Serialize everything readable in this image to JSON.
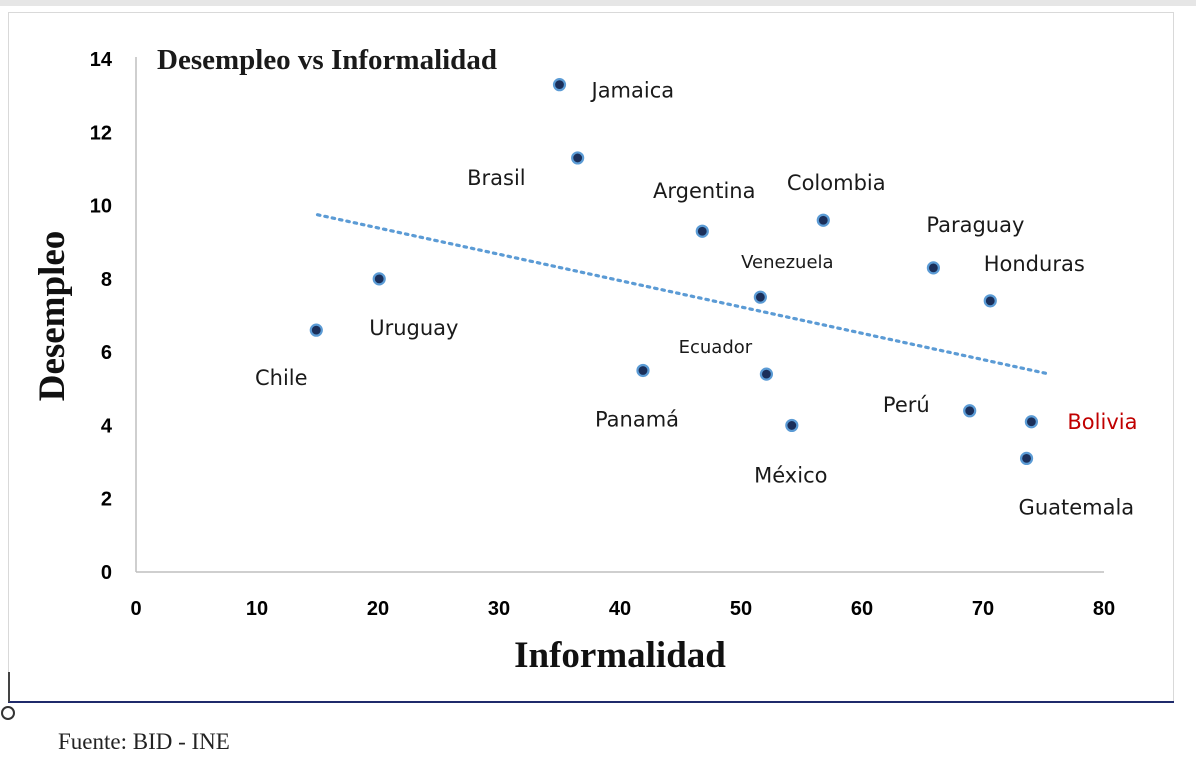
{
  "chart_data": {
    "type": "scatter",
    "title": "Desempleo vs Informalidad",
    "xlabel": "Informalidad",
    "ylabel": "Desempleo",
    "xlim": [
      0,
      80
    ],
    "ylim": [
      0,
      14
    ],
    "x_ticks": [
      "0",
      "10",
      "20",
      "30",
      "40",
      "50",
      "60",
      "70",
      "80"
    ],
    "y_ticks": [
      "0",
      "2",
      "4",
      "6",
      "8",
      "10",
      "12",
      "14"
    ],
    "grid": false,
    "point_color": "#1b2f5a",
    "point_edge_color": "#5b9bd5",
    "highlight_color": "#c00000",
    "trendline": {
      "style": "dotted",
      "color": "#5b9bd5",
      "start": {
        "x": 15,
        "y": 9.75
      },
      "end": {
        "x": 75.5,
        "y": 5.4
      }
    },
    "points": [
      {
        "label": "Jamaica",
        "x": 35,
        "y": 13.3
      },
      {
        "label": "Brasil",
        "x": 36.5,
        "y": 11.3
      },
      {
        "label": "Argentina",
        "x": 46.8,
        "y": 9.3
      },
      {
        "label": "Colombia",
        "x": 56.8,
        "y": 9.6
      },
      {
        "label": "Paraguay",
        "x": 65.9,
        "y": 8.3
      },
      {
        "label": "Honduras",
        "x": 70.6,
        "y": 7.4
      },
      {
        "label": "Venezuela",
        "x": 51.6,
        "y": 7.5
      },
      {
        "label": "Uruguay",
        "x": 20.1,
        "y": 8.0
      },
      {
        "label": "Chile",
        "x": 14.9,
        "y": 6.6
      },
      {
        "label": "Ecuador",
        "x": 52.1,
        "y": 5.4
      },
      {
        "label": "Panamá",
        "x": 41.9,
        "y": 5.5
      },
      {
        "label": "México",
        "x": 54.2,
        "y": 4.0
      },
      {
        "label": "Perú",
        "x": 68.9,
        "y": 4.4
      },
      {
        "label": "Bolivia",
        "x": 74.0,
        "y": 4.1,
        "highlight": true
      },
      {
        "label": "Guatemala",
        "x": 73.6,
        "y": 3.1
      }
    ]
  },
  "source_note": "Fuente: BID - INE"
}
